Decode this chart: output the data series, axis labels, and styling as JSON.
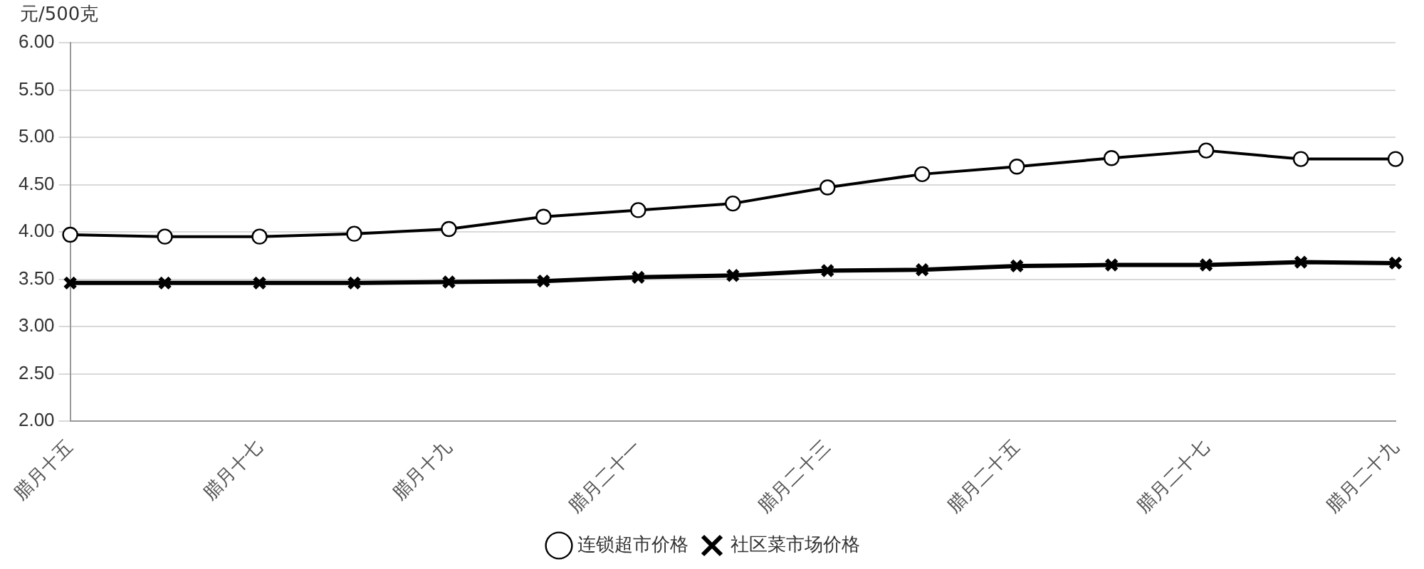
{
  "chart_data": {
    "type": "line",
    "ylabel": "元/500克",
    "categories": [
      "腊月十五",
      null,
      "腊月十七",
      null,
      "腊月十九",
      null,
      "腊月二十一",
      null,
      "腊月二十三",
      null,
      "腊月二十五",
      null,
      "腊月二十七",
      null,
      "腊月二十九"
    ],
    "series": [
      {
        "name": "连锁超市价格",
        "color": "#000000",
        "marker": "circle",
        "values": [
          3.97,
          3.95,
          3.95,
          3.98,
          4.03,
          4.16,
          4.23,
          4.3,
          4.47,
          4.61,
          4.69,
          4.78,
          4.86,
          4.77,
          4.77
        ]
      },
      {
        "name": "社区菜市场价格",
        "color": "#000000",
        "marker": "cross",
        "values": [
          3.46,
          3.46,
          3.46,
          3.46,
          3.47,
          3.48,
          3.52,
          3.54,
          3.59,
          3.6,
          3.64,
          3.65,
          3.65,
          3.68,
          3.67
        ]
      }
    ],
    "ylim": [
      2,
      6
    ],
    "yticks": [
      {
        "value": 2,
        "label": "2.00"
      },
      {
        "value": 2.5,
        "label": "2.50"
      },
      {
        "value": 3,
        "label": "3.00"
      },
      {
        "value": 3.5,
        "label": "3.50"
      },
      {
        "value": 4,
        "label": "4.00"
      },
      {
        "value": 4.5,
        "label": "4.50"
      },
      {
        "value": 5,
        "label": "5.00"
      },
      {
        "value": 5.5,
        "label": "5.50"
      },
      {
        "value": 6,
        "label": "6.00"
      }
    ],
    "grid": "y",
    "legend": "bottom",
    "line_style": "solid"
  }
}
